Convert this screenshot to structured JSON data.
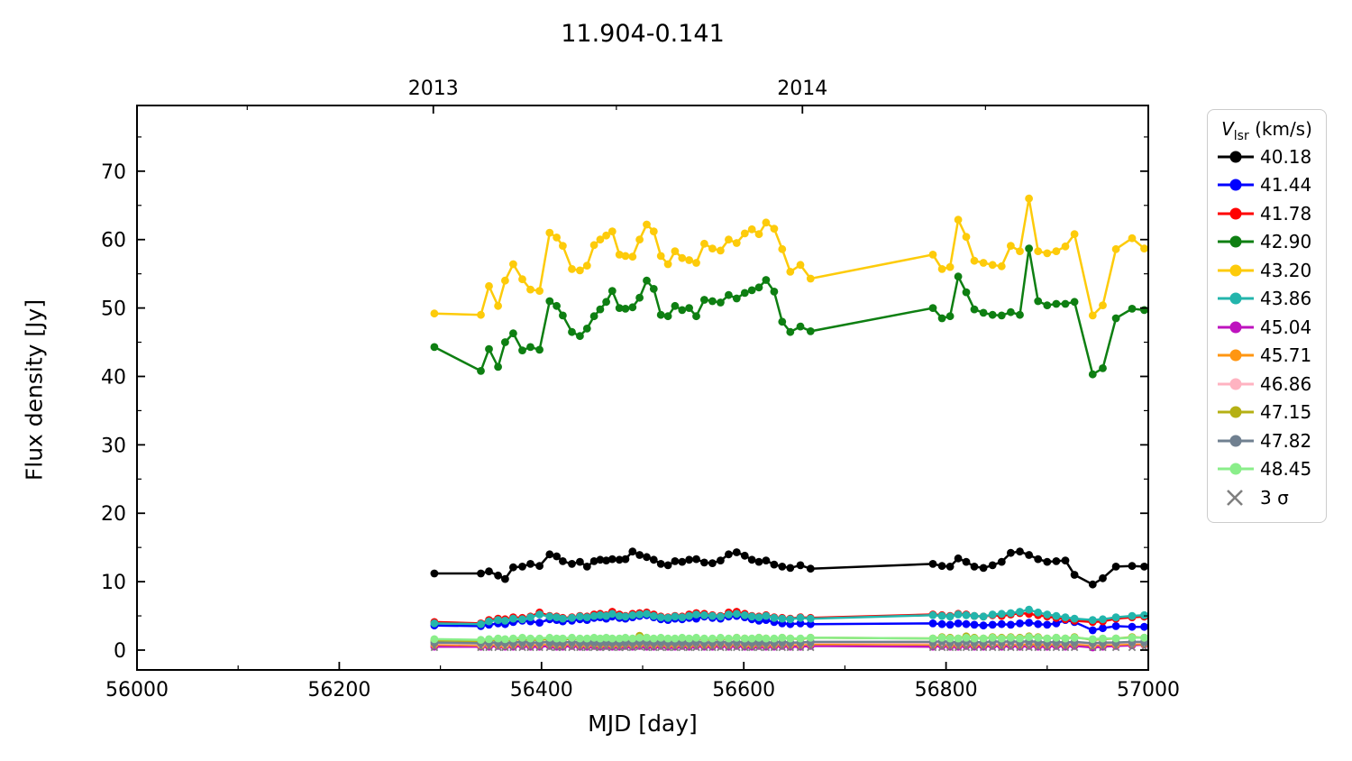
{
  "title": "11.904-0.141",
  "axes": {
    "xlabel": "MJD [day]",
    "ylabel": "Flux density [Jy]",
    "xlim": [
      56000,
      57000
    ],
    "ylim": [
      -2.9,
      79.6
    ],
    "x_major_ticks": [
      56000,
      56200,
      56400,
      56600,
      56800,
      57000
    ],
    "x_minor_ticks": [
      56100,
      56300,
      56500,
      56700,
      56900
    ],
    "y_major_ticks": [
      0,
      10,
      20,
      30,
      40,
      50,
      60,
      70
    ],
    "y_minor_ticks": [
      5,
      15,
      25,
      35,
      45,
      55,
      65,
      75
    ],
    "top_major_ticks": [
      {
        "mjd": 56293,
        "label": "2013"
      },
      {
        "mjd": 56658,
        "label": "2014"
      }
    ],
    "top_minor_ticks": [
      56109,
      56474,
      56839
    ],
    "grid": false
  },
  "legend": {
    "title_v": "V",
    "title_sub": "lsr",
    "title_units": " (km/s)",
    "position": "outside-right"
  },
  "chart_data": {
    "type": "line",
    "x_name": "MJD [day]",
    "y_name": "Flux density [Jy]",
    "marker": "circle",
    "x": [
      56294,
      56340,
      56348,
      56357,
      56364,
      56372,
      56381,
      56389,
      56398,
      56408,
      56415,
      56421,
      56430,
      56438,
      56445,
      56452,
      56458,
      56464,
      56470,
      56477,
      56483,
      56490,
      56497,
      56504,
      56511,
      56518,
      56525,
      56532,
      56539,
      56546,
      56553,
      56561,
      56569,
      56577,
      56585,
      56593,
      56601,
      56608,
      56615,
      56622,
      56630,
      56638,
      56646,
      56656,
      56666,
      56787,
      56796,
      56804,
      56812,
      56820,
      56828,
      56837,
      56846,
      56855,
      56864,
      56873,
      56882,
      56891,
      56900,
      56909,
      56918,
      56927,
      56945,
      56955,
      56968,
      56984,
      56996,
      57006
    ],
    "series": [
      {
        "name": "40.18",
        "color": "#000000",
        "values": [
          11.2,
          11.2,
          11.5,
          10.9,
          10.4,
          12.1,
          12.2,
          12.6,
          12.3,
          14.0,
          13.7,
          13.0,
          12.6,
          12.9,
          12.2,
          13.0,
          13.2,
          13.1,
          13.3,
          13.2,
          13.3,
          14.4,
          13.9,
          13.6,
          13.2,
          12.6,
          12.4,
          13.0,
          12.9,
          13.2,
          13.3,
          12.8,
          12.7,
          13.1,
          14.0,
          14.3,
          13.8,
          13.2,
          12.9,
          13.1,
          12.5,
          12.2,
          12.0,
          12.4,
          11.9,
          12.6,
          12.3,
          12.2,
          13.4,
          12.9,
          12.2,
          12.0,
          12.4,
          12.9,
          14.2,
          14.4,
          13.9,
          13.3,
          12.9,
          13.0,
          13.1,
          11.0,
          9.6,
          10.5,
          12.2,
          12.3,
          12.2,
          11.9
        ]
      },
      {
        "name": "41.44",
        "color": "#0000FF",
        "values": [
          3.6,
          3.5,
          3.7,
          3.9,
          3.8,
          4.1,
          4.3,
          4.2,
          4.0,
          4.5,
          4.4,
          4.2,
          4.3,
          4.5,
          4.4,
          4.7,
          4.8,
          4.6,
          4.9,
          4.7,
          4.6,
          4.8,
          5.0,
          5.1,
          4.8,
          4.5,
          4.4,
          4.6,
          4.5,
          4.7,
          4.6,
          4.9,
          4.7,
          4.6,
          4.9,
          5.0,
          4.8,
          4.5,
          4.3,
          4.4,
          4.1,
          3.9,
          3.8,
          3.9,
          3.8,
          3.9,
          3.8,
          3.7,
          3.9,
          3.8,
          3.7,
          3.6,
          3.7,
          3.8,
          3.7,
          3.9,
          4.0,
          3.8,
          3.7,
          3.9,
          4.4,
          4.1,
          2.9,
          3.2,
          3.5,
          3.4,
          3.4,
          3.5
        ]
      },
      {
        "name": "41.78",
        "color": "#FF0000",
        "values": [
          4.1,
          3.9,
          4.4,
          4.6,
          4.5,
          4.8,
          4.7,
          4.9,
          5.5,
          5.0,
          4.9,
          4.7,
          4.8,
          5.0,
          4.9,
          5.2,
          5.3,
          5.1,
          5.6,
          5.2,
          5.0,
          5.3,
          5.4,
          5.5,
          5.2,
          4.9,
          4.8,
          5.0,
          4.9,
          5.2,
          5.4,
          5.3,
          5.1,
          5.0,
          5.5,
          5.6,
          5.3,
          5.0,
          4.9,
          5.1,
          4.8,
          4.7,
          4.6,
          4.8,
          4.7,
          5.2,
          5.1,
          5.0,
          5.3,
          5.2,
          5.0,
          4.9,
          5.1,
          5.0,
          5.2,
          5.4,
          5.3,
          5.1,
          4.9,
          4.7,
          4.5,
          4.3,
          4.1,
          4.2,
          4.6,
          4.8,
          4.9,
          4.8
        ]
      },
      {
        "name": "42.90",
        "color": "#0E7F12",
        "values": [
          44.3,
          40.8,
          44.0,
          41.4,
          45.0,
          46.3,
          43.8,
          44.3,
          43.9,
          51.0,
          50.3,
          48.9,
          46.5,
          45.9,
          47.0,
          48.8,
          49.8,
          50.9,
          52.5,
          50.0,
          49.9,
          50.1,
          51.5,
          54.0,
          52.8,
          49.0,
          48.8,
          50.3,
          49.7,
          50.0,
          48.8,
          51.2,
          51.0,
          50.8,
          51.9,
          51.4,
          52.2,
          52.6,
          53.0,
          54.1,
          52.4,
          48.0,
          46.5,
          47.3,
          46.6,
          50.0,
          48.5,
          48.8,
          54.6,
          52.3,
          49.8,
          49.3,
          49.0,
          48.9,
          49.4,
          49.0,
          58.7,
          51.0,
          50.4,
          50.6,
          50.6,
          50.9,
          40.3,
          41.2,
          48.5,
          49.9,
          49.7,
          49.4
        ]
      },
      {
        "name": "43.20",
        "color": "#FDCB0A",
        "values": [
          49.2,
          49.0,
          53.2,
          50.3,
          54.0,
          56.4,
          54.2,
          52.7,
          52.5,
          61.0,
          60.3,
          59.1,
          55.7,
          55.5,
          56.2,
          59.2,
          60.0,
          60.6,
          61.2,
          57.8,
          57.6,
          57.5,
          60.0,
          62.2,
          61.2,
          57.6,
          56.4,
          58.3,
          57.3,
          57.0,
          56.6,
          59.4,
          58.7,
          58.4,
          60.0,
          59.5,
          60.9,
          61.5,
          60.8,
          62.5,
          61.6,
          58.6,
          55.3,
          56.3,
          54.3,
          57.8,
          55.7,
          56.0,
          62.9,
          60.4,
          56.9,
          56.6,
          56.3,
          56.1,
          59.1,
          58.3,
          66.0,
          58.3,
          58.0,
          58.3,
          59.0,
          60.8,
          48.9,
          50.4,
          58.6,
          60.2,
          58.7,
          58.4
        ]
      },
      {
        "name": "43.86",
        "color": "#23B5AC",
        "values": [
          3.9,
          3.8,
          4.2,
          4.4,
          4.3,
          4.6,
          4.5,
          4.8,
          5.2,
          4.9,
          4.8,
          4.6,
          4.7,
          4.9,
          4.8,
          5.0,
          5.1,
          5.0,
          5.3,
          5.0,
          4.9,
          5.1,
          5.2,
          5.3,
          5.0,
          4.8,
          4.7,
          4.9,
          4.8,
          5.0,
          5.2,
          5.1,
          5.0,
          4.9,
          5.2,
          5.3,
          5.1,
          4.9,
          4.8,
          5.0,
          4.7,
          4.6,
          4.5,
          4.7,
          4.6,
          5.1,
          5.0,
          4.9,
          5.2,
          5.1,
          5.0,
          4.9,
          5.2,
          5.3,
          5.4,
          5.6,
          5.9,
          5.5,
          5.2,
          5.0,
          4.8,
          4.6,
          4.4,
          4.5,
          4.8,
          5.0,
          5.1,
          5.0
        ]
      },
      {
        "name": "45.04",
        "color": "#BE13BE",
        "values": [
          0.5,
          0.5,
          0.5,
          0.6,
          0.5,
          0.5,
          0.6,
          0.5,
          0.5,
          0.6,
          0.5,
          0.5,
          0.6,
          0.5,
          0.5,
          0.6,
          0.5,
          0.6,
          0.5,
          0.5,
          0.6,
          0.5,
          0.6,
          0.5,
          0.5,
          0.6,
          0.5,
          0.5,
          0.6,
          0.5,
          0.6,
          0.5,
          0.5,
          0.6,
          0.5,
          0.6,
          0.5,
          0.5,
          0.6,
          0.5,
          0.5,
          0.6,
          0.5,
          0.5,
          0.6,
          0.5,
          0.6,
          0.5,
          0.5,
          0.6,
          0.5,
          0.5,
          0.6,
          0.5,
          0.6,
          0.5,
          0.6,
          0.5,
          0.5,
          0.6,
          0.5,
          0.6,
          0.4,
          0.5,
          0.6,
          0.7,
          0.8,
          0.7
        ]
      },
      {
        "name": "45.71",
        "color": "#FF9612",
        "values": [
          0.8,
          0.7,
          0.8,
          0.8,
          0.7,
          0.8,
          0.9,
          0.8,
          0.8,
          0.9,
          0.8,
          0.8,
          0.9,
          0.8,
          0.8,
          0.9,
          0.8,
          0.9,
          0.8,
          0.8,
          0.9,
          0.8,
          0.9,
          0.9,
          0.8,
          0.9,
          0.8,
          0.8,
          0.9,
          0.8,
          0.9,
          0.8,
          0.8,
          0.9,
          0.8,
          0.9,
          0.8,
          0.8,
          0.9,
          0.8,
          0.8,
          0.9,
          0.8,
          0.8,
          0.9,
          0.8,
          0.9,
          0.8,
          0.8,
          0.9,
          0.8,
          0.8,
          0.9,
          0.8,
          0.9,
          0.8,
          0.9,
          0.8,
          0.8,
          0.9,
          0.8,
          0.9,
          0.7,
          0.8,
          0.8,
          0.9,
          0.9,
          0.8
        ]
      },
      {
        "name": "46.86",
        "color": "#FFB3C1",
        "values": [
          1.0,
          0.9,
          1.0,
          1.0,
          0.9,
          1.0,
          1.1,
          1.0,
          1.0,
          1.1,
          1.0,
          1.0,
          1.1,
          1.0,
          1.0,
          1.1,
          1.0,
          1.1,
          1.0,
          1.0,
          1.1,
          1.0,
          1.1,
          1.1,
          1.0,
          1.1,
          1.0,
          1.0,
          1.1,
          1.0,
          1.1,
          1.0,
          1.0,
          1.1,
          1.0,
          1.1,
          1.0,
          1.0,
          1.1,
          1.0,
          1.0,
          1.1,
          1.0,
          1.0,
          1.1,
          1.0,
          1.1,
          1.0,
          1.0,
          1.1,
          1.0,
          1.0,
          1.1,
          1.0,
          1.1,
          1.0,
          1.2,
          1.1,
          1.0,
          1.1,
          1.0,
          1.1,
          0.9,
          1.0,
          1.0,
          1.1,
          1.1,
          1.0
        ]
      },
      {
        "name": "47.15",
        "color": "#B5B014",
        "values": [
          1.4,
          1.3,
          1.4,
          1.5,
          1.4,
          1.5,
          1.6,
          1.5,
          1.5,
          1.6,
          1.5,
          1.5,
          1.7,
          1.6,
          1.5,
          1.6,
          1.5,
          1.7,
          1.6,
          1.5,
          1.7,
          1.6,
          2.1,
          1.8,
          1.6,
          1.7,
          1.6,
          1.5,
          1.7,
          1.6,
          1.7,
          1.6,
          1.5,
          1.7,
          1.6,
          1.8,
          1.7,
          1.6,
          1.8,
          1.7,
          1.6,
          1.8,
          1.7,
          1.6,
          1.8,
          1.7,
          1.9,
          1.8,
          1.7,
          2.0,
          1.8,
          1.7,
          1.9,
          1.8,
          1.9,
          1.8,
          2.0,
          1.9,
          1.7,
          1.8,
          1.7,
          1.9,
          1.5,
          1.6,
          1.7,
          1.9,
          1.8,
          1.7
        ]
      },
      {
        "name": "47.82",
        "color": "#708090",
        "values": [
          1.1,
          1.0,
          1.1,
          1.1,
          1.0,
          1.1,
          1.2,
          1.1,
          1.1,
          1.2,
          1.1,
          1.1,
          1.2,
          1.1,
          1.1,
          1.2,
          1.1,
          1.2,
          1.1,
          1.1,
          1.2,
          1.1,
          1.2,
          1.2,
          1.1,
          1.2,
          1.1,
          1.1,
          1.2,
          1.1,
          1.2,
          1.1,
          1.1,
          1.2,
          1.1,
          1.2,
          1.1,
          1.1,
          1.2,
          1.1,
          1.1,
          1.2,
          1.1,
          1.1,
          1.2,
          1.2,
          1.3,
          1.2,
          1.1,
          1.3,
          1.2,
          1.1,
          1.3,
          1.2,
          1.3,
          1.2,
          1.3,
          1.2,
          1.1,
          1.2,
          1.1,
          1.2,
          1.0,
          1.1,
          1.1,
          1.2,
          1.2,
          1.1
        ]
      },
      {
        "name": "48.45",
        "color": "#8AEE8A",
        "values": [
          1.6,
          1.5,
          1.6,
          1.7,
          1.6,
          1.7,
          1.8,
          1.7,
          1.7,
          1.8,
          1.7,
          1.7,
          1.8,
          1.7,
          1.7,
          1.8,
          1.7,
          1.8,
          1.7,
          1.7,
          1.8,
          1.7,
          1.8,
          1.8,
          1.7,
          1.8,
          1.7,
          1.7,
          1.8,
          1.7,
          1.8,
          1.7,
          1.7,
          1.8,
          1.7,
          1.8,
          1.7,
          1.7,
          1.8,
          1.7,
          1.7,
          1.8,
          1.7,
          1.7,
          1.8,
          1.7,
          1.8,
          1.7,
          1.7,
          1.8,
          1.7,
          1.7,
          1.8,
          1.7,
          1.8,
          1.7,
          1.9,
          1.8,
          1.7,
          1.8,
          1.7,
          1.8,
          1.6,
          1.7,
          1.7,
          1.8,
          1.8,
          1.7
        ]
      }
    ],
    "sigma": {
      "name": "3 σ",
      "color": "#7F7F7F",
      "marker": "x",
      "values": [
        0.4,
        0.4,
        0.4,
        0.4,
        0.4,
        0.4,
        0.4,
        0.4,
        0.4,
        0.4,
        0.4,
        0.4,
        0.4,
        0.4,
        0.4,
        0.4,
        0.4,
        0.4,
        0.4,
        0.4,
        0.4,
        0.4,
        0.5,
        0.4,
        0.4,
        0.4,
        0.4,
        0.4,
        0.4,
        0.4,
        0.4,
        0.4,
        0.4,
        0.4,
        0.4,
        0.4,
        0.4,
        0.4,
        0.4,
        0.4,
        0.4,
        0.4,
        0.4,
        0.4,
        0.4,
        0.4,
        0.4,
        0.4,
        0.4,
        0.4,
        0.4,
        0.4,
        0.4,
        0.4,
        0.4,
        0.4,
        0.4,
        0.4,
        0.4,
        0.4,
        0.4,
        0.4,
        0.4,
        0.4,
        0.4,
        0.4,
        0.4,
        0.4
      ]
    }
  }
}
